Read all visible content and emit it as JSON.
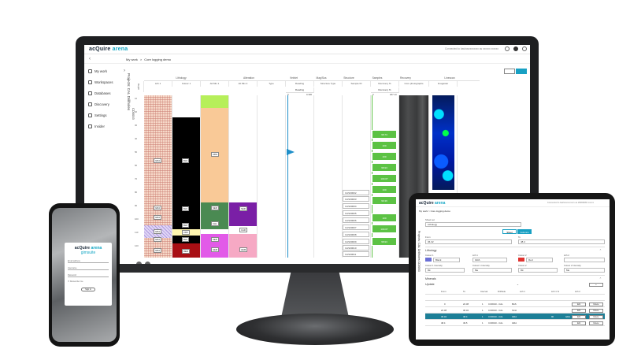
{
  "colors": {
    "accent": "#18a0c3",
    "recovery_green": "#5cc244",
    "lith_black": "#000000",
    "lith_tan": "#f9c997",
    "lith_red": "#a80f14",
    "lith_purple": "#7a1fa6",
    "lith_green": "#4a8a52",
    "lith_lime": "#b6ef5a",
    "lith_magenta": "#e25ae8",
    "lith_pink": "#f6a9c4"
  },
  "brand": {
    "name_a": "acQuire ",
    "name_b": "arena",
    "gim": "gimsuite"
  },
  "monitor": {
    "connection": "Connected to bashosxxxxxxxx as xxxxxx  xxxxxx",
    "back_icon": "chevron-left-icon",
    "breadcrumb": [
      "My work",
      ">",
      "Core logging demo"
    ],
    "nav": [
      {
        "icon": "person-icon",
        "label": "My work"
      },
      {
        "icon": "workspace-icon",
        "label": "Workspaces"
      },
      {
        "icon": "database-icon",
        "label": "Databases"
      },
      {
        "icon": "discover-icon",
        "label": "Discovery"
      },
      {
        "icon": "gear-icon",
        "label": "Settings"
      },
      {
        "icon": "info-icon",
        "label": "Insider"
      }
    ],
    "vertical_title": "Projects:  CAL  Drillholes",
    "vertical_hole": "CD0003",
    "groups": [
      "Lithology",
      "Alteration",
      "Veinlet",
      "Mag/Sus",
      "Structure",
      "Samples",
      "Recovery",
      "Linescan"
    ],
    "columns": [
      "Depth",
      "Lith 1",
      "Colour 1",
      "Alt Min 1",
      "Alt Min 2",
      "Type",
      "Reading",
      "Structure Type",
      "Sample ID",
      "Recovery %",
      "Core photographs",
      "Imagestar"
    ],
    "subheads": {
      "reading": "Reading",
      "reading_min": "0",
      "reading_max": "0.330",
      "recovery": "Recovery %",
      "rec_min": "0",
      "rec_max": "187.14"
    },
    "depth_ticks": [
      "10",
      "20",
      "30",
      "40",
      "50",
      "60",
      "70",
      "80",
      "90",
      "100",
      "110",
      "120"
    ],
    "lith_labels": [
      "GRA",
      "GRA",
      "GRA",
      "GRA",
      "GRA",
      "GRA"
    ],
    "colour_labels": [
      "BLK",
      "BLK",
      "CRC",
      "BLK",
      "BLK",
      "RED"
    ],
    "alt_labels": [
      "ARG",
      "SER",
      "CHL",
      "SER",
      "HEM"
    ],
    "alt2_labels": [
      "SER",
      "CAR",
      "HEM"
    ],
    "recovery_values": [
      "98.73",
      "100",
      "100",
      "98.93",
      "100.07",
      "100",
      "99.39",
      "100",
      "100.07",
      "98.93"
    ],
    "samples": [
      "CAS00002",
      "CAS00003",
      "CAS00004",
      "CAS00005",
      "CAS00006",
      "CAS00007",
      "CAS00008",
      "CAS00009",
      "CAS00010",
      "CAS00011",
      "CAS00012"
    ]
  },
  "phone": {
    "fields": [
      "Email address",
      "Username",
      "Password"
    ],
    "remember": "Remember me",
    "button": "Sign in"
  },
  "tablet": {
    "connection": "Connected to bashosxxxxxxxx as ########  xxxxxx",
    "breadcrumb": "My work  >  Core logging demo",
    "vertical_title": "Projects:  CAL  Drillholes  CD0003",
    "select_label": "Sheet set",
    "select_value": "Lithology",
    "tabs": [
      "Sheet",
      "Columns"
    ],
    "from_label": "From",
    "from_value": "36.32",
    "to_label": "To",
    "to_value": "48.4",
    "section_lithology": "Lithology",
    "fields": [
      {
        "label": "Colour 1",
        "value": "Black"
      },
      {
        "label": "Lith 1",
        "value": "GRA"
      },
      {
        "label": "Colour 2",
        "value": "Red"
      },
      {
        "label": "Lith 2",
        "value": ""
      },
      {
        "label": "Colour 1 Intensity",
        "value": "Dk"
      },
      {
        "label": "Colour 1 Intensity",
        "value": "Me"
      },
      {
        "label": "Colour 2",
        "value": "Dk"
      },
      {
        "label": "Colour 2 Intensity",
        "value": "Me"
      }
    ],
    "section_minerals": "Minerals",
    "section_update": "Update",
    "headers": [
      "From",
      "To",
      "Interval",
      "Drillhole",
      "Lith 1",
      "Lith 1 %",
      "Lith 2"
    ],
    "rows": [
      [
        "0",
        "22.38",
        "1",
        "CCR010 - CAL",
        "BAS",
        "",
        ""
      ],
      [
        "22.38",
        "36.32",
        "1",
        "CCR010 - CAL",
        "SCH",
        "",
        ""
      ],
      [
        "36.32",
        "48.4",
        "1",
        "CCR010 - CAL",
        "GRA",
        "90",
        "GRA"
      ],
      [
        "48.4",
        "49.5",
        "1",
        "CCR010 - CAL",
        "GRA",
        "",
        ""
      ]
    ],
    "row_actions": [
      "Edit",
      "Delete"
    ]
  }
}
